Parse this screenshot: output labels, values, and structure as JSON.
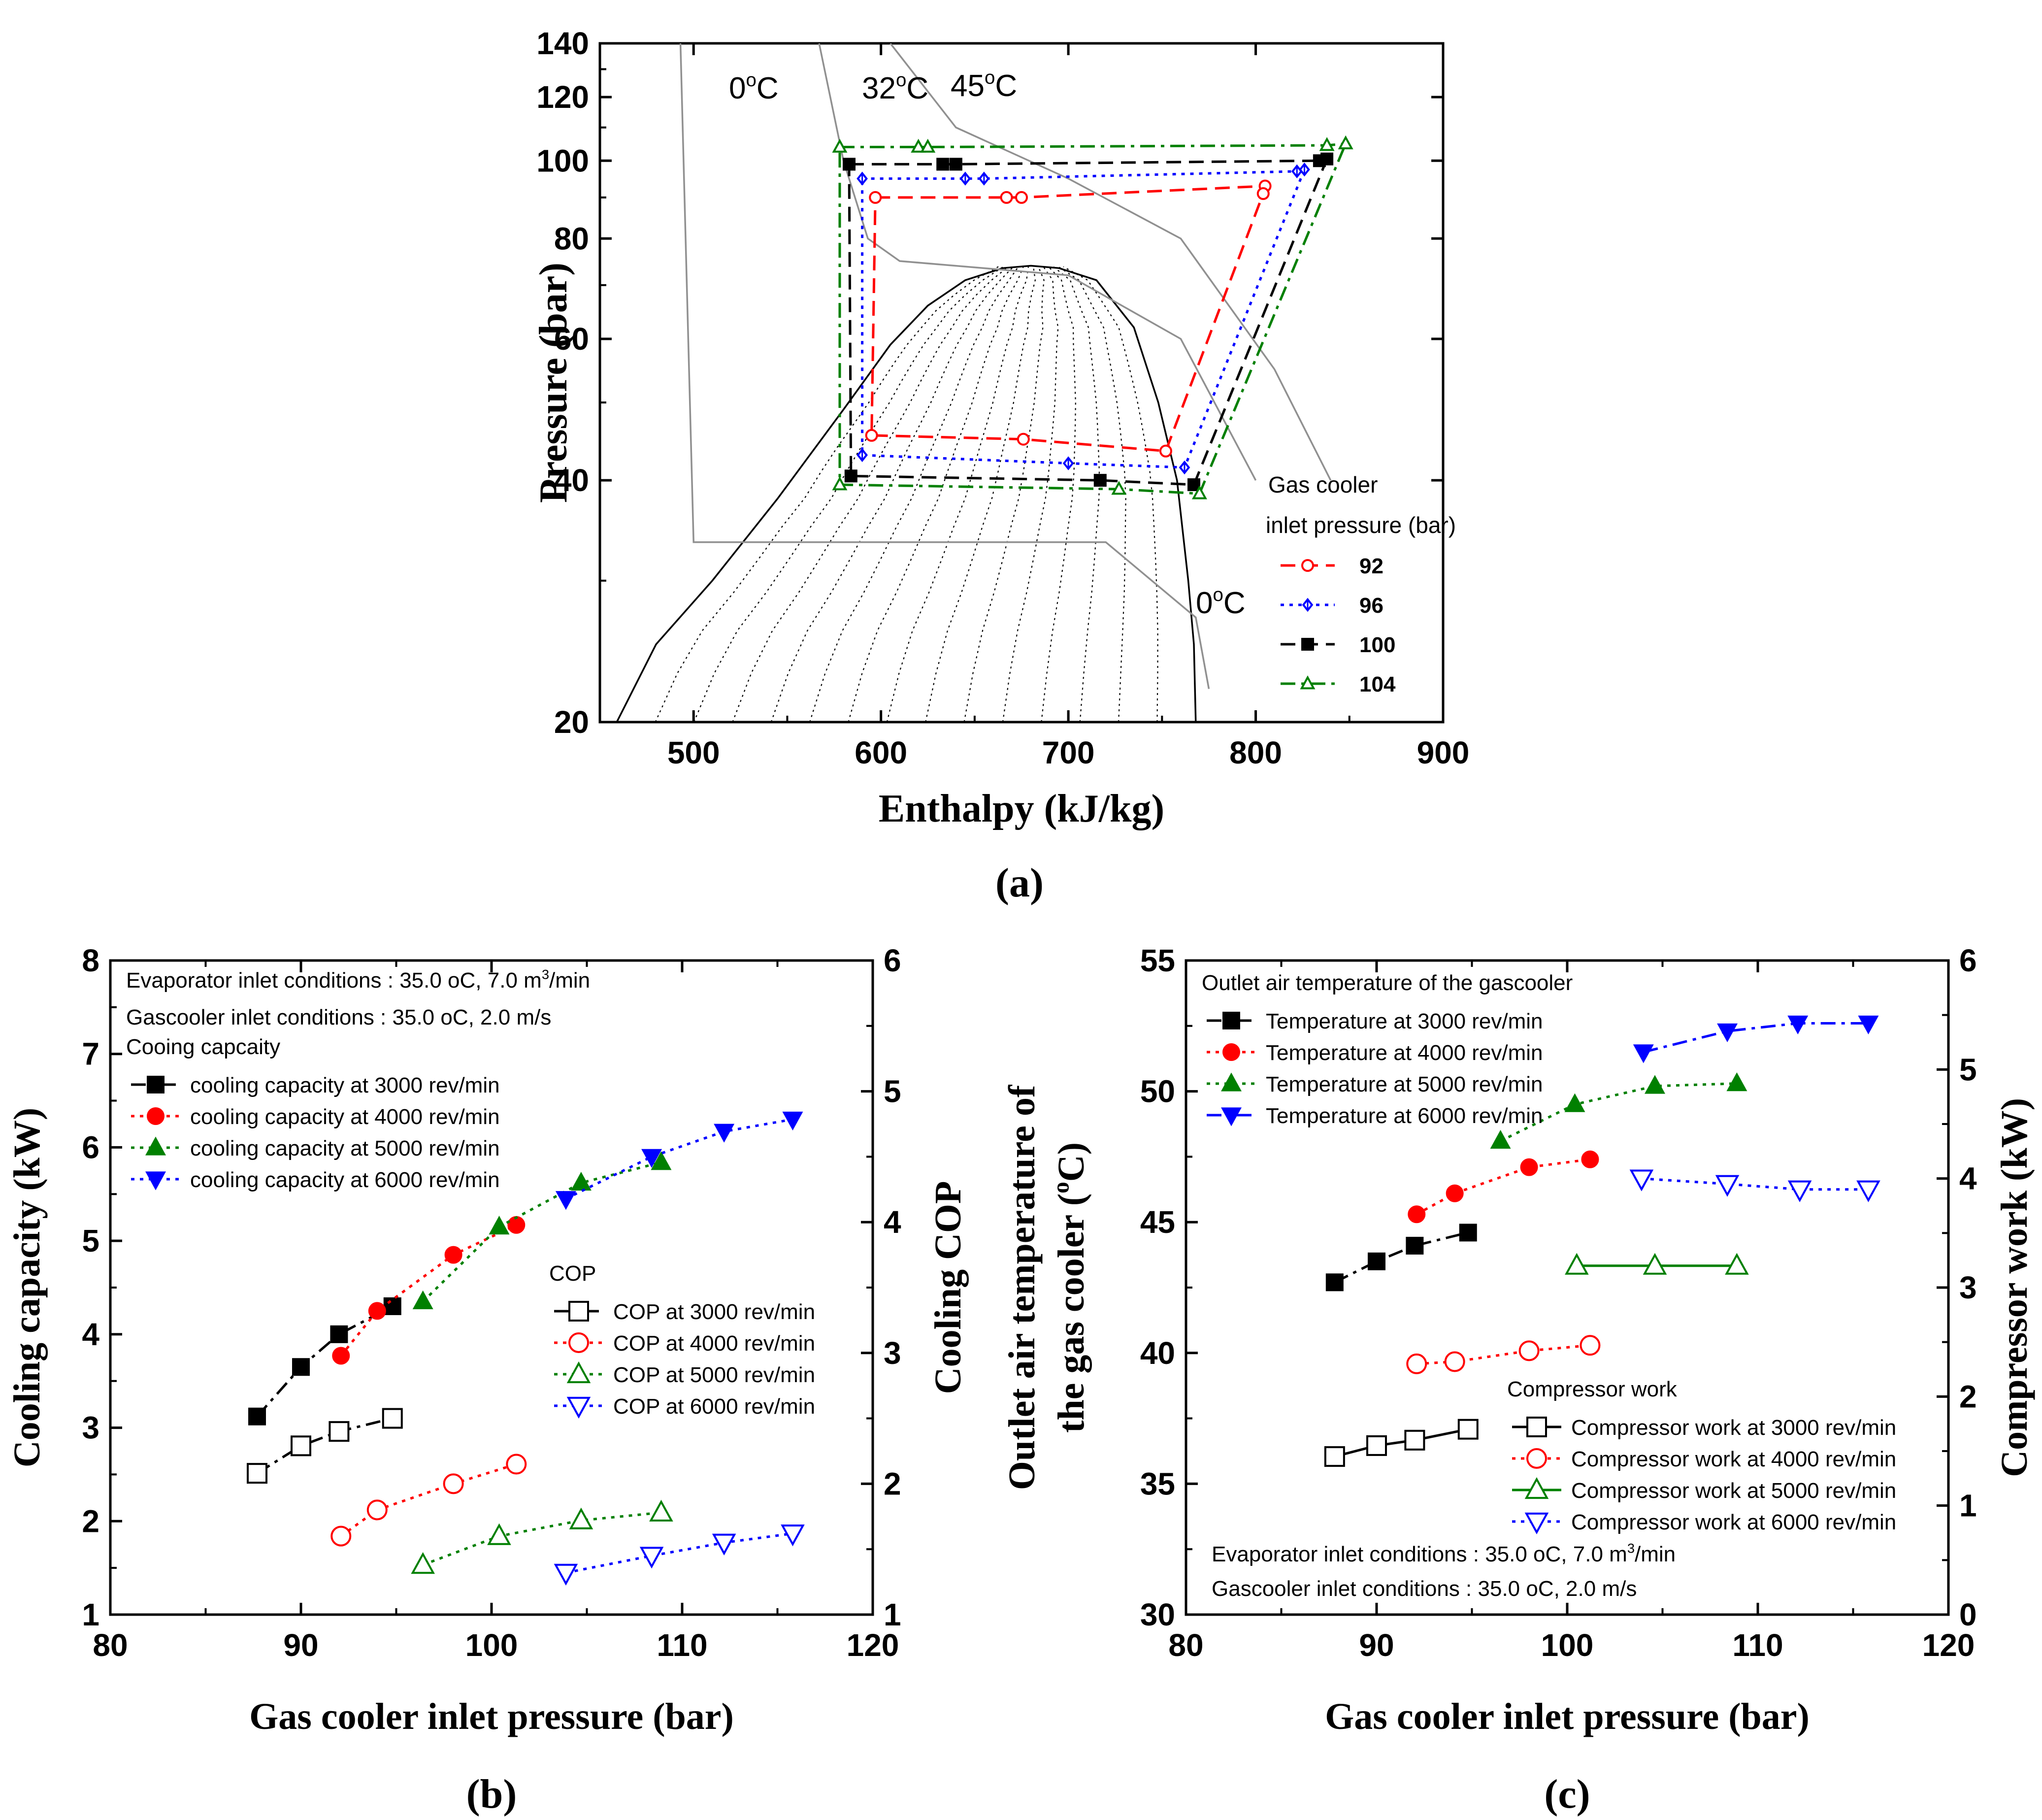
{
  "chart_data": [
    {
      "id": "a",
      "type": "line",
      "panel_label": "(a)",
      "title": "",
      "xlabel": "Enthalpy (kJ/kg)",
      "ylabel": "Pressure (bar)",
      "xlim": [
        450,
        900
      ],
      "ylim": [
        20,
        140
      ],
      "yscale": "log",
      "xticks": [
        500,
        600,
        700,
        800,
        900
      ],
      "yticks": [
        20,
        40,
        60,
        80,
        100,
        120,
        140
      ],
      "isotherm_labels": [
        "0oC",
        "32oC",
        "45oC",
        "0oC"
      ],
      "legend_title_1": "Gas cooler",
      "legend_title_2": "inlet pressure (bar)",
      "saturation_dome": {
        "left": [
          [
            459,
            20
          ],
          [
            480,
            25
          ],
          [
            510,
            30
          ],
          [
            545,
            38
          ],
          [
            580,
            49
          ],
          [
            605,
            59
          ],
          [
            625,
            66
          ],
          [
            645,
            71
          ],
          [
            665,
            73.5
          ],
          [
            680,
            74
          ],
          [
            695,
            73.5
          ],
          [
            715,
            71
          ],
          [
            735,
            62
          ],
          [
            748,
            50
          ],
          [
            758,
            40
          ],
          [
            764,
            30
          ],
          [
            767,
            25
          ],
          [
            768,
            20
          ]
        ]
      },
      "isotherms": [
        {
          "name": "0oC",
          "points": [
            [
              493,
              140
            ],
            [
              500,
              33.5
            ],
            [
              720,
              33.5
            ],
            [
              768,
              27
            ],
            [
              775,
              22
            ]
          ]
        },
        {
          "name": "32oC",
          "points": [
            [
              567,
              140
            ],
            [
              580,
              100
            ],
            [
              593,
              80
            ],
            [
              610,
              75
            ],
            [
              700,
              72
            ],
            [
              760,
              60
            ],
            [
              800,
              40
            ]
          ]
        },
        {
          "name": "45oC",
          "points": [
            [
              605,
              140
            ],
            [
              640,
              110
            ],
            [
              700,
              95
            ],
            [
              760,
              80
            ],
            [
              810,
              55
            ],
            [
              840,
              40
            ]
          ]
        }
      ],
      "series": [
        {
          "name": "92",
          "color": "#ff0000",
          "dash": "dash",
          "marker": "circle-open",
          "points": [
            [
              597,
              90
            ],
            [
              667,
              90
            ],
            [
              675,
              90
            ],
            [
              805,
              93
            ],
            [
              804,
              91
            ],
            [
              752,
              43.5
            ],
            [
              676,
              45
            ],
            [
              595,
              45.5
            ],
            [
              597,
              90
            ]
          ],
          "markers": [
            [
              597,
              90
            ],
            [
              667,
              90
            ],
            [
              675,
              90
            ],
            [
              805,
              93
            ],
            [
              804,
              91
            ],
            [
              752,
              43.5
            ],
            [
              676,
              45
            ],
            [
              595,
              45.5
            ]
          ]
        },
        {
          "name": "96",
          "color": "#0000ff",
          "dash": "dot",
          "marker": "diamond-cross",
          "points": [
            [
              590,
              95
            ],
            [
              645,
              95
            ],
            [
              655,
              95
            ],
            [
              822,
              97
            ],
            [
              826,
              97.5
            ],
            [
              762,
              41.5
            ],
            [
              700,
              42
            ],
            [
              590,
              43
            ],
            [
              590,
              95
            ]
          ],
          "markers": [
            [
              590,
              95
            ],
            [
              645,
              95
            ],
            [
              655,
              95
            ],
            [
              822,
              97
            ],
            [
              826,
              97.5
            ],
            [
              762,
              41.5
            ],
            [
              700,
              42
            ],
            [
              590,
              43
            ]
          ]
        },
        {
          "name": "100",
          "color": "#000000",
          "dash": "dash",
          "marker": "square-filled",
          "points": [
            [
              583,
              99
            ],
            [
              633,
              99
            ],
            [
              640,
              99
            ],
            [
              834,
              100
            ],
            [
              838,
              100.5
            ],
            [
              767,
              39.5
            ],
            [
              717,
              40
            ],
            [
              584,
              40.5
            ],
            [
              583,
              99
            ]
          ],
          "markers": [
            [
              583,
              99
            ],
            [
              633,
              99
            ],
            [
              640,
              99
            ],
            [
              834,
              100
            ],
            [
              838,
              100.5
            ],
            [
              767,
              39.5
            ],
            [
              717,
              40
            ],
            [
              584,
              40.5
            ]
          ]
        },
        {
          "name": "104",
          "color": "#008000",
          "dash": "dashdot",
          "marker": "triangle-open",
          "points": [
            [
              578,
              104
            ],
            [
              620,
              104
            ],
            [
              625,
              104
            ],
            [
              838,
              104.5
            ],
            [
              848,
              105
            ],
            [
              770,
              38.5
            ],
            [
              727,
              39
            ],
            [
              578,
              39.5
            ],
            [
              578,
              104
            ]
          ],
          "markers": [
            [
              578,
              104
            ],
            [
              620,
              104
            ],
            [
              625,
              104
            ],
            [
              838,
              104.5
            ],
            [
              848,
              105
            ],
            [
              770,
              38.5
            ],
            [
              727,
              39
            ],
            [
              578,
              39.5
            ]
          ]
        }
      ]
    },
    {
      "id": "b",
      "type": "scatter",
      "panel_label": "(b)",
      "title": "",
      "xlabel": "Gas cooler inlet pressure (bar)",
      "ylabel": "Cooling  capacity (kW)",
      "y2label": "Cooling COP",
      "xlim": [
        80,
        120
      ],
      "ylim": [
        1,
        8
      ],
      "y2lim": [
        1,
        6
      ],
      "xticks": [
        80,
        90,
        100,
        110,
        120
      ],
      "yticks": [
        1,
        2,
        3,
        4,
        5,
        6,
        7,
        8
      ],
      "y2ticks": [
        1,
        2,
        3,
        4,
        5,
        6
      ],
      "notes": [
        "Evaporator inlet conditions : 35.0 oC, 7.0 m3/min",
        "Gascooler inlet conditions : 35.0 oC, 2.0 m/s"
      ],
      "legend_group_1": "Cooing capcaity",
      "legend_group_2": "COP",
      "series": [
        {
          "name": "cooling capacity at 3000 rev/min",
          "axis": "left",
          "color": "#000000",
          "marker": "square",
          "filled": true,
          "dash": "dashdot",
          "x": [
            87.7,
            90.0,
            92.0,
            94.8
          ],
          "y": [
            3.12,
            3.65,
            4.0,
            4.3
          ]
        },
        {
          "name": "cooling capacity at  4000 rev/min",
          "axis": "left",
          "color": "#ff0000",
          "marker": "circle",
          "filled": true,
          "dash": "dot",
          "x": [
            92.1,
            94.0,
            98.0,
            101.3
          ],
          "y": [
            3.77,
            4.25,
            4.85,
            5.17
          ]
        },
        {
          "name": "cooling capacity at 5000 rev/min",
          "axis": "left",
          "color": "#008000",
          "marker": "triangle-up",
          "filled": true,
          "dash": "dot",
          "x": [
            96.4,
            100.4,
            104.7,
            108.9
          ],
          "y": [
            4.35,
            5.15,
            5.62,
            5.84
          ]
        },
        {
          "name": "cooling capacity at  6000 rev/min",
          "axis": "left",
          "color": "#0000ff",
          "marker": "triangle-down",
          "filled": true,
          "dash": "dot",
          "x": [
            103.9,
            108.4,
            112.2,
            115.8
          ],
          "y": [
            5.45,
            5.9,
            6.17,
            6.3
          ]
        },
        {
          "name": "COP at 3000 rev/min",
          "axis": "right",
          "color": "#000000",
          "marker": "square",
          "filled": false,
          "dash": "dashdot",
          "x": [
            87.7,
            90.0,
            92.0,
            94.8
          ],
          "y": [
            2.08,
            2.29,
            2.4,
            2.5
          ]
        },
        {
          "name": "COP at  4000 rev/min",
          "axis": "right",
          "color": "#ff0000",
          "marker": "circle",
          "filled": false,
          "dash": "dot",
          "x": [
            92.1,
            94.0,
            98.0,
            101.3
          ],
          "y": [
            1.6,
            1.8,
            2.0,
            2.15
          ]
        },
        {
          "name": "COP at 5000 rev/min",
          "axis": "right",
          "color": "#008000",
          "marker": "triangle-up",
          "filled": false,
          "dash": "dot",
          "x": [
            96.4,
            100.4,
            104.7,
            108.9
          ],
          "y": [
            1.38,
            1.6,
            1.72,
            1.78
          ]
        },
        {
          "name": "COP at  6000 rev/min",
          "axis": "right",
          "color": "#0000ff",
          "marker": "triangle-down",
          "filled": false,
          "dash": "dot",
          "x": [
            103.9,
            108.4,
            112.2,
            115.8
          ],
          "y": [
            1.32,
            1.45,
            1.55,
            1.62
          ]
        }
      ]
    },
    {
      "id": "c",
      "type": "scatter",
      "panel_label": "(c)",
      "title": "",
      "xlabel": "Gas cooler inlet pressure (bar)",
      "ylabel_line1": "Outlet air temperature of",
      "ylabel_line2": "the gas cooler (oC)",
      "y2label": "Compressor work (kW)",
      "xlim": [
        80,
        120
      ],
      "ylim": [
        30,
        55
      ],
      "y2lim": [
        0,
        6
      ],
      "xticks": [
        80,
        90,
        100,
        110,
        120
      ],
      "yticks": [
        30,
        35,
        40,
        45,
        50,
        55
      ],
      "y2ticks": [
        0,
        1,
        2,
        3,
        4,
        5,
        6
      ],
      "notes": [
        "Evaporator inlet conditions : 35.0 oC, 7.0 m3/min",
        "Gascooler inlet conditions : 35.0 oC, 2.0 m/s"
      ],
      "legend_group_1": "Outlet air temperature of the gascooler",
      "legend_group_2": "Compressor work",
      "series": [
        {
          "name": "Temperature  at 3000 rev/min",
          "axis": "left",
          "color": "#000000",
          "marker": "square",
          "filled": true,
          "dash": "dashdot",
          "x": [
            87.8,
            90.0,
            92.0,
            94.8
          ],
          "y": [
            42.7,
            43.5,
            44.1,
            44.6
          ]
        },
        {
          "name": "Temperature  at  4000 rev/min",
          "axis": "left",
          "color": "#ff0000",
          "marker": "circle",
          "filled": true,
          "dash": "dot",
          "x": [
            92.1,
            94.1,
            98.0,
            101.2
          ],
          "y": [
            45.3,
            46.1,
            47.1,
            47.4
          ]
        },
        {
          "name": "Temperature  at 5000 rev/min",
          "axis": "left",
          "color": "#008000",
          "marker": "triangle-up",
          "filled": true,
          "dash": "dot",
          "x": [
            96.5,
            100.4,
            104.6,
            108.9
          ],
          "y": [
            48.1,
            49.5,
            50.2,
            50.3
          ]
        },
        {
          "name": "Temperature  at  6000 rev/min",
          "axis": "left",
          "color": "#0000ff",
          "marker": "triangle-down",
          "filled": true,
          "dash": "dashdot",
          "x": [
            104.0,
            108.4,
            112.1,
            115.8
          ],
          "y": [
            51.5,
            52.3,
            52.6,
            52.6
          ]
        },
        {
          "name": "Compressor work at 3000 rev/min",
          "axis": "right",
          "color": "#000000",
          "marker": "square",
          "filled": false,
          "dash": "solid",
          "x": [
            87.8,
            90.0,
            92.0,
            94.8
          ],
          "y": [
            1.45,
            1.55,
            1.6,
            1.7
          ]
        },
        {
          "name": "Compressor work  at  4000 rev/min",
          "axis": "right",
          "color": "#ff0000",
          "marker": "circle",
          "filled": false,
          "dash": "dot",
          "x": [
            92.1,
            94.1,
            98.0,
            101.2
          ],
          "y": [
            2.3,
            2.32,
            2.42,
            2.47
          ]
        },
        {
          "name": "Compressor work  at  5000 rev/min",
          "axis": "right",
          "color": "#008000",
          "marker": "triangle-up",
          "filled": false,
          "dash": "solid",
          "x": [
            100.5,
            104.6,
            108.9
          ],
          "y": [
            3.2,
            3.2,
            3.2
          ]
        },
        {
          "name": "Compressor work  at  6000 rev/min",
          "axis": "right",
          "color": "#0000ff",
          "marker": "triangle-down",
          "filled": false,
          "dash": "dot",
          "x": [
            103.9,
            108.4,
            112.2,
            115.8
          ],
          "y": [
            4.0,
            3.95,
            3.9,
            3.9
          ]
        }
      ]
    }
  ]
}
